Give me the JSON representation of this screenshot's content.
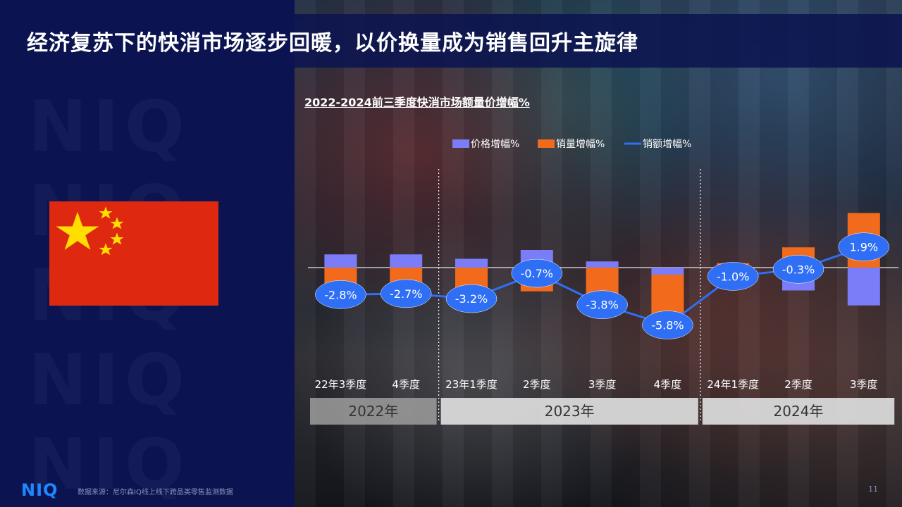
{
  "page": {
    "title": "经济复苏下的快消市场逐步回暖，以价换量成为销售回升主旋律",
    "watermark_text": "NIQ",
    "logo": "NIQ",
    "source": "数据来源：尼尔森IQ线上线下跨品类零售监测数据",
    "page_number": "11"
  },
  "colors": {
    "background": "#0b1450",
    "price_series": "#7b7cf7",
    "volume_series": "#f26a1b",
    "value_series": "#2f6ff5",
    "year_2022": "#9e9e9e",
    "year_2023": "#d9d9d9",
    "year_2024": "#d9d9d9"
  },
  "icons": {
    "flag": "china-flag-icon"
  },
  "chart_data": {
    "type": "bar",
    "title": "2022-2024前三季度快消市场额量价增幅%",
    "categories": [
      "22年3季度",
      "4季度",
      "23年1季度",
      "2季度",
      "3季度",
      "4季度",
      "24年1季度",
      "2季度",
      "3季度"
    ],
    "year_groups": [
      {
        "label": "2022年",
        "count": 2
      },
      {
        "label": "2023年",
        "count": 4
      },
      {
        "label": "2024年",
        "count": 3
      }
    ],
    "series": [
      {
        "name": "价格增幅%",
        "kind": "bar",
        "color": "#7b7cf7",
        "values": [
          1.5,
          1.5,
          1.0,
          2.0,
          0.7,
          -0.8,
          -1.5,
          -2.6,
          -4.3
        ]
      },
      {
        "name": "销量增幅%",
        "kind": "bar",
        "color": "#f26a1b",
        "values": [
          -4.3,
          -4.2,
          -4.2,
          -2.7,
          -4.5,
          -5.0,
          0.5,
          2.3,
          6.2
        ]
      },
      {
        "name": "销额增幅%",
        "kind": "line",
        "color": "#2f6ff5",
        "values": [
          -2.8,
          -2.7,
          -3.2,
          -0.7,
          -3.8,
          -5.8,
          -1.0,
          -0.3,
          1.9
        ],
        "labels": [
          "-2.8%",
          "-2.7%",
          "-3.2%",
          "-0.7%",
          "-3.8%",
          "-5.8%",
          "-1.0%",
          "-0.3%",
          "1.9%"
        ]
      }
    ],
    "legend_position": "top-right",
    "grid": false
  }
}
